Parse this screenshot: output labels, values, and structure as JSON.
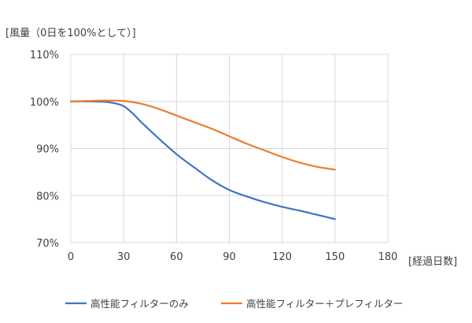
{
  "chart_data": {
    "type": "line",
    "ylabel": "[風量（0日を100%として）]",
    "xlabel": "[経過日数]",
    "xlim": [
      0,
      180
    ],
    "ylim": [
      70,
      110
    ],
    "x_ticks": [
      0,
      30,
      60,
      90,
      120,
      150,
      180
    ],
    "y_ticks": [
      70,
      80,
      90,
      100,
      110
    ],
    "y_tick_labels": [
      "70%",
      "80%",
      "90%",
      "100%",
      "110%"
    ],
    "grid": true,
    "legend_position": "bottom",
    "series": [
      {
        "name": "高性能フィルターのみ",
        "color": "#4472c4",
        "x": [
          0,
          10,
          20,
          25,
          30,
          35,
          40,
          50,
          60,
          70,
          80,
          90,
          100,
          110,
          120,
          130,
          140,
          150
        ],
        "y": [
          100,
          100,
          99.9,
          99.6,
          99,
          97.5,
          95.6,
          92.1,
          88.8,
          86,
          83.3,
          81.2,
          79.8,
          78.6,
          77.6,
          76.8,
          75.9,
          75
        ]
      },
      {
        "name": "高性能フィルター＋プレフィルター",
        "color": "#ed7d31",
        "x": [
          0,
          10,
          20,
          30,
          40,
          50,
          60,
          70,
          80,
          90,
          100,
          110,
          120,
          130,
          140,
          150
        ],
        "y": [
          100,
          100.1,
          100.2,
          100.1,
          99.5,
          98.4,
          97,
          95.6,
          94.2,
          92.6,
          91,
          89.6,
          88.2,
          87,
          86.1,
          85.5
        ]
      }
    ]
  }
}
